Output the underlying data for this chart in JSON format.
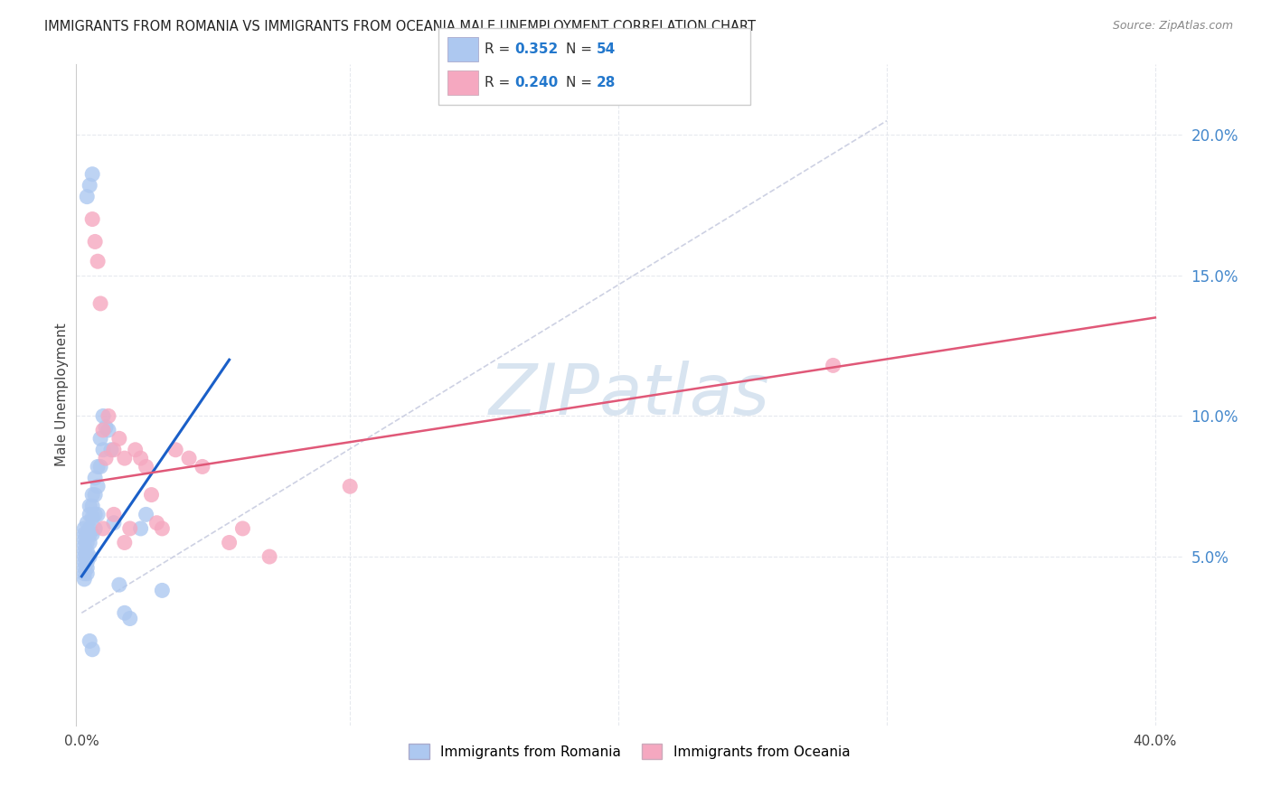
{
  "title": "IMMIGRANTS FROM ROMANIA VS IMMIGRANTS FROM OCEANIA MALE UNEMPLOYMENT CORRELATION CHART",
  "source": "Source: ZipAtlas.com",
  "ylabel": "Male Unemployment",
  "ytick_labels": [
    "5.0%",
    "10.0%",
    "15.0%",
    "20.0%"
  ],
  "ytick_values": [
    0.05,
    0.1,
    0.15,
    0.2
  ],
  "xlim": [
    -0.002,
    0.41
  ],
  "ylim": [
    -0.01,
    0.225
  ],
  "romania_R": "0.352",
  "romania_N": "54",
  "oceania_R": "0.240",
  "oceania_N": "28",
  "romania_color": "#adc8f0",
  "oceania_color": "#f5a8c0",
  "romania_line_color": "#1a5fc8",
  "oceania_line_color": "#e05878",
  "dashed_color": "#c8cce0",
  "watermark_color": "#d8e4f0",
  "background_color": "#ffffff",
  "grid_color": "#e0e4ea",
  "tick_color": "#4488cc",
  "romania_x": [
    0.001,
    0.001,
    0.001,
    0.001,
    0.001,
    0.001,
    0.001,
    0.001,
    0.001,
    0.001,
    0.002,
    0.002,
    0.002,
    0.002,
    0.002,
    0.002,
    0.002,
    0.002,
    0.003,
    0.003,
    0.003,
    0.003,
    0.003,
    0.003,
    0.004,
    0.004,
    0.004,
    0.004,
    0.005,
    0.005,
    0.005,
    0.005,
    0.006,
    0.006,
    0.006,
    0.007,
    0.007,
    0.008,
    0.008,
    0.009,
    0.01,
    0.011,
    0.012,
    0.014,
    0.016,
    0.018,
    0.002,
    0.003,
    0.004,
    0.022,
    0.024,
    0.03,
    0.003,
    0.004
  ],
  "romania_y": [
    0.06,
    0.058,
    0.056,
    0.054,
    0.052,
    0.05,
    0.048,
    0.046,
    0.044,
    0.042,
    0.062,
    0.058,
    0.055,
    0.052,
    0.05,
    0.048,
    0.046,
    0.044,
    0.068,
    0.065,
    0.06,
    0.058,
    0.055,
    0.05,
    0.072,
    0.068,
    0.064,
    0.058,
    0.078,
    0.072,
    0.065,
    0.06,
    0.082,
    0.075,
    0.065,
    0.092,
    0.082,
    0.1,
    0.088,
    0.096,
    0.095,
    0.088,
    0.062,
    0.04,
    0.03,
    0.028,
    0.178,
    0.182,
    0.186,
    0.06,
    0.065,
    0.038,
    0.02,
    0.017
  ],
  "oceania_x": [
    0.004,
    0.005,
    0.006,
    0.007,
    0.008,
    0.009,
    0.01,
    0.012,
    0.014,
    0.016,
    0.018,
    0.02,
    0.022,
    0.024,
    0.026,
    0.028,
    0.03,
    0.035,
    0.04,
    0.045,
    0.055,
    0.06,
    0.07,
    0.1,
    0.28,
    0.008,
    0.012,
    0.016
  ],
  "oceania_y": [
    0.17,
    0.162,
    0.155,
    0.14,
    0.095,
    0.085,
    0.1,
    0.088,
    0.092,
    0.085,
    0.06,
    0.088,
    0.085,
    0.082,
    0.072,
    0.062,
    0.06,
    0.088,
    0.085,
    0.082,
    0.055,
    0.06,
    0.05,
    0.075,
    0.118,
    0.06,
    0.065,
    0.055
  ],
  "romania_line_x": [
    0.0,
    0.055
  ],
  "romania_line_y": [
    0.043,
    0.12
  ],
  "oceania_line_x": [
    0.0,
    0.4
  ],
  "oceania_line_y": [
    0.076,
    0.135
  ],
  "dashed_line_x": [
    0.0,
    0.3
  ],
  "dashed_line_y": [
    0.03,
    0.205
  ]
}
